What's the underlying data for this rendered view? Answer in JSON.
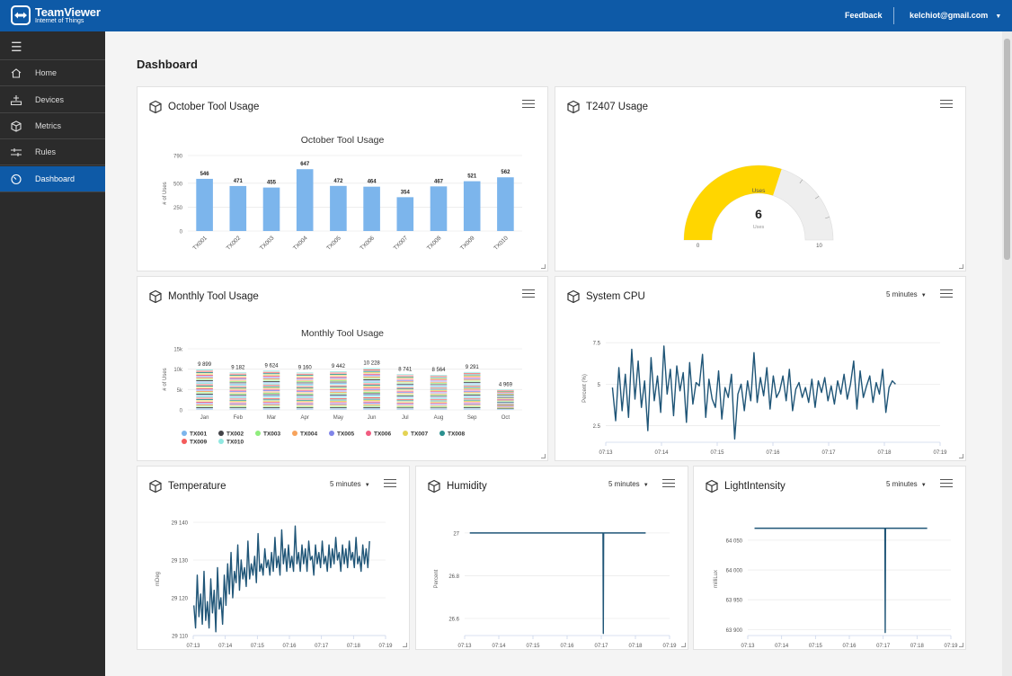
{
  "header": {
    "brand": "TeamViewer",
    "brand_sub": "Internet of Things",
    "feedback": "Feedback",
    "account": "kelchiot@gmail.com"
  },
  "sidebar": {
    "items": [
      {
        "label": "Home",
        "icon": "home-icon"
      },
      {
        "label": "Devices",
        "icon": "devices-icon"
      },
      {
        "label": "Metrics",
        "icon": "cube-icon"
      },
      {
        "label": "Rules",
        "icon": "rules-icon"
      },
      {
        "label": "Dashboard",
        "icon": "dashboard-icon",
        "active": true
      }
    ]
  },
  "page": {
    "title": "Dashboard"
  },
  "cards": {
    "october": {
      "title": "October Tool Usage"
    },
    "t2407": {
      "title": "T2407 Usage"
    },
    "monthly": {
      "title": "Monthly Tool Usage"
    },
    "cpu": {
      "title": "System CPU",
      "range": "5 minutes"
    },
    "temperature": {
      "title": "Temperature",
      "range": "5 minutes"
    },
    "humidity": {
      "title": "Humidity",
      "range": "5 minutes"
    },
    "light": {
      "title": "LightIntensity",
      "range": "5 minutes"
    }
  },
  "colors": {
    "brand": "#0e5aa7",
    "bar": "#7cb5ec",
    "gauge_fill": "#ffd600",
    "gauge_track": "#eeeeee",
    "line": "#1f5577",
    "sidebar": "#2b2b2b"
  },
  "chart_data": [
    {
      "id": "october",
      "type": "bar",
      "title": "October Tool Usage",
      "ylabel": "# of Uses",
      "categories": [
        "TX001",
        "TX002",
        "TX003",
        "TX004",
        "TX005",
        "TX006",
        "TX007",
        "TX008",
        "TX009",
        "TX010"
      ],
      "values": [
        546,
        471,
        455,
        647,
        472,
        464,
        354,
        467,
        521,
        562
      ],
      "yticks": [
        0,
        250,
        500,
        790
      ],
      "ylim": [
        0,
        790
      ]
    },
    {
      "id": "t2407",
      "type": "gauge",
      "label": "Uses",
      "value": 6,
      "min": 0,
      "max": 10,
      "value_caption": "Uses"
    },
    {
      "id": "monthly",
      "type": "bar",
      "stacked": true,
      "title": "Monthly Tool Usage",
      "ylabel": "# of Uses",
      "categories": [
        "Jan",
        "Feb",
        "Mar",
        "Apr",
        "May",
        "Jun",
        "Jul",
        "Aug",
        "Sep",
        "Oct"
      ],
      "totals": [
        "9 899",
        "9 182",
        "9 624",
        "9 160",
        "9 442",
        "10 228",
        "8 741",
        "8 564",
        "9 291",
        "4 969"
      ],
      "total_values": [
        9899,
        9182,
        9624,
        9160,
        9442,
        10228,
        8741,
        8564,
        9291,
        4969
      ],
      "yticks": [
        "0",
        "5k",
        "10k",
        "15k"
      ],
      "ylim": [
        0,
        15000
      ],
      "series": [
        {
          "name": "TX001",
          "color": "#7cb5ec"
        },
        {
          "name": "TX002",
          "color": "#434348"
        },
        {
          "name": "TX003",
          "color": "#90ed7d"
        },
        {
          "name": "TX004",
          "color": "#f7a35c"
        },
        {
          "name": "TX005",
          "color": "#8085e9"
        },
        {
          "name": "TX006",
          "color": "#f15c80"
        },
        {
          "name": "TX007",
          "color": "#e4d354"
        },
        {
          "name": "TX008",
          "color": "#2b908f"
        },
        {
          "name": "TX009",
          "color": "#f45b5b"
        },
        {
          "name": "TX010",
          "color": "#91e8e1"
        }
      ],
      "legend": "bottom"
    },
    {
      "id": "cpu",
      "type": "line",
      "ylabel": "Percent (%)",
      "yticks": [
        "2.5",
        "5",
        "7.5"
      ],
      "ylim": [
        1.5,
        8
      ],
      "xticks": [
        "07:13",
        "07:14",
        "07:15",
        "07:16",
        "07:17",
        "07:18",
        "07:19"
      ],
      "x_range": [
        0,
        6
      ],
      "x_end": 5.2,
      "y": [
        4.8,
        2.8,
        6.0,
        3.4,
        5.6,
        3.0,
        7.1,
        4.1,
        6.4,
        3.6,
        5.2,
        2.2,
        6.6,
        4.0,
        5.5,
        3.3,
        7.3,
        4.4,
        5.9,
        3.1,
        6.1,
        4.6,
        5.7,
        2.7,
        6.3,
        3.8,
        5.1,
        4.9,
        6.8,
        3.0,
        5.3,
        4.1,
        3.6,
        5.8,
        2.9,
        4.8,
        4.2,
        5.6,
        1.7,
        4.4,
        5.0,
        3.4,
        5.2,
        4.0,
        6.9,
        3.9,
        5.4,
        4.3,
        6.0,
        3.5,
        5.5,
        4.2,
        4.6,
        5.5,
        4.0,
        5.9,
        3.4,
        4.7,
        5.1,
        4.2,
        4.8,
        3.9,
        5.3,
        3.6,
        5.2,
        4.5,
        5.4,
        4.0,
        4.9,
        3.8,
        5.2,
        4.4,
        5.6,
        4.1,
        5.0,
        6.4,
        3.5,
        5.8,
        4.2,
        4.9,
        5.5,
        3.9,
        5.1,
        4.4,
        5.9,
        3.3,
        4.8,
        5.2,
        5.0
      ]
    },
    {
      "id": "temperature",
      "type": "line",
      "ylabel": "mDeg",
      "yticks": [
        "29 110",
        "29 120",
        "29 130",
        "29 140"
      ],
      "ylim": [
        29110,
        29140
      ],
      "xticks": [
        "07:13",
        "07:14",
        "07:15",
        "07:16",
        "07:17",
        "07:18",
        "07:19"
      ],
      "x_range": [
        0,
        6
      ],
      "x_end": 5.5,
      "y": [
        29118,
        29112,
        29126,
        29115,
        29121,
        29113,
        29127,
        29114,
        29119,
        29112,
        29125,
        29116,
        29122,
        29111,
        29128,
        29117,
        29120,
        29113,
        29126,
        29118,
        29129,
        29121,
        29132,
        29120,
        29127,
        29124,
        29134,
        29122,
        29130,
        29125,
        29128,
        29123,
        29135,
        29125,
        29129,
        29126,
        29131,
        29124,
        29137,
        29127,
        29129,
        29126,
        29133,
        29128,
        29130,
        29126,
        29132,
        29127,
        29136,
        29128,
        29131,
        29126,
        29138,
        29129,
        29133,
        29127,
        29134,
        29128,
        29131,
        29127,
        29139,
        29129,
        29132,
        29127,
        29134,
        29129,
        29133,
        29127,
        29135,
        29130,
        29131,
        29126,
        29134,
        29129,
        29132,
        29128,
        29135,
        29129,
        29131,
        29127,
        29134,
        29128,
        29133,
        29129,
        29136,
        29130,
        29132,
        29127,
        29134,
        29129,
        29133,
        29128,
        29135,
        29130,
        29132,
        29128,
        29136,
        29129,
        29131,
        29127,
        29134,
        29129,
        29133,
        29128,
        29135
      ]
    },
    {
      "id": "humidity",
      "type": "line",
      "ylabel": "Percent",
      "yticks": [
        "26.6",
        "26.8",
        "27"
      ],
      "ylim": [
        26.52,
        27.05
      ],
      "xticks": [
        "07:13",
        "07:14",
        "07:15",
        "07:16",
        "07:17",
        "07:18",
        "07:19"
      ],
      "x_range": [
        0,
        6
      ],
      "series_points": [
        [
          0.15,
          27
        ],
        [
          4.05,
          27
        ],
        [
          4.06,
          26.53
        ],
        [
          4.07,
          27
        ],
        [
          5.3,
          27
        ]
      ]
    },
    {
      "id": "light",
      "type": "line",
      "ylabel": "milliLux",
      "yticks": [
        "63 900",
        "63 950",
        "64 000",
        "64 050"
      ],
      "ylim": [
        63890,
        64080
      ],
      "xticks": [
        "07:13",
        "07:14",
        "07:15",
        "07:16",
        "07:17",
        "07:18",
        "07:19"
      ],
      "x_range": [
        0,
        6
      ],
      "series_points": [
        [
          0.2,
          64070
        ],
        [
          4.05,
          64070
        ],
        [
          4.06,
          63895
        ],
        [
          4.07,
          64070
        ],
        [
          5.3,
          64070
        ]
      ]
    }
  ]
}
